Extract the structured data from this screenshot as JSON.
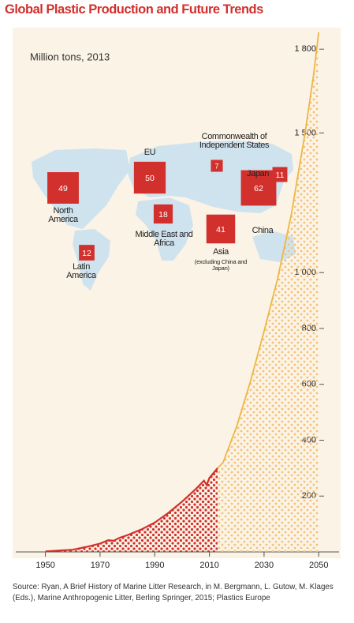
{
  "chart_data": {
    "type": "line",
    "title": "Global Plastic Production and Future Trends",
    "subtitle": "Million tons, 2013",
    "source": "Source: Ryan, A Brief History of Marine Litter Research, in M. Bergmann, L. Gutow, M. Klages (Eds.), Marine Anthropogenic Litter, Berling Springer, 2015; Plastics Europe",
    "xlim": [
      1938,
      2058
    ],
    "xticks": [
      1950,
      1970,
      1990,
      2010,
      2030,
      2050
    ],
    "ylim": [
      0,
      1860
    ],
    "yticks": [
      200,
      400,
      600,
      800,
      {
        "value": 1000,
        "label": "1 000"
      },
      {
        "value": 1500,
        "label": "1 500"
      },
      {
        "value": 1800,
        "label": "1 800"
      }
    ],
    "series": [
      {
        "color": "#d2302c",
        "x": [
          1950,
          1955,
          1960,
          1965,
          1970,
          1973,
          1975,
          1977,
          1980,
          1985,
          1990,
          1995,
          2000,
          2005,
          2008,
          2009,
          2010,
          2013
        ],
        "values": [
          2,
          5,
          8,
          18,
          30,
          42,
          40,
          50,
          60,
          80,
          105,
          140,
          180,
          225,
          255,
          240,
          265,
          300
        ]
      },
      {
        "color": "#f0b544",
        "x": [
          2013,
          2015,
          2020,
          2025,
          2030,
          2035,
          2040,
          2045,
          2048,
          2050
        ],
        "values": [
          300,
          320,
          450,
          610,
          790,
          980,
          1210,
          1500,
          1700,
          1860
        ]
      }
    ],
    "regions": [
      {
        "name": "North America",
        "value": 49
      },
      {
        "name": "Latin America",
        "value": 12
      },
      {
        "name": "EU",
        "value": 50
      },
      {
        "name": "Middle East and Africa",
        "value": 18
      },
      {
        "name": "Commonwealth of Independent States",
        "value": 7
      },
      {
        "name": "Japan",
        "value": 11
      },
      {
        "name": "China",
        "value": 62
      },
      {
        "name": "Asia",
        "value": 41,
        "note": "(excluding China and Japan)"
      }
    ]
  }
}
